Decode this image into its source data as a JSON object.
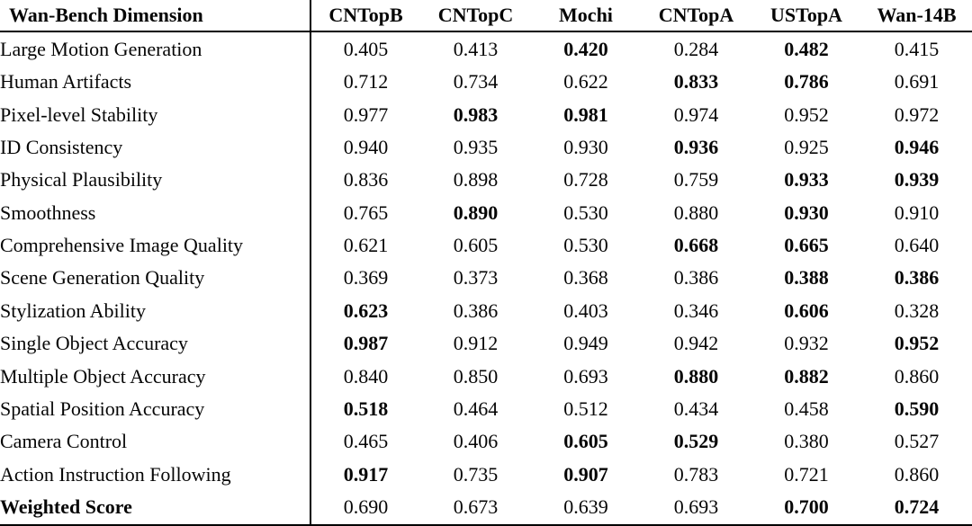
{
  "chart_data": {
    "type": "table",
    "columns": [
      "Wan-Bench Dimension",
      "CNTopB",
      "CNTopC",
      "Mochi",
      "CNTopA",
      "USTopA",
      "Wan-14B"
    ],
    "rows": [
      {
        "dimension": "Large Motion Generation",
        "dimension_bold": false,
        "values": [
          "0.405",
          "0.413",
          "0.420",
          "0.284",
          "0.482",
          "0.415"
        ],
        "bold": [
          2,
          4
        ]
      },
      {
        "dimension": "Human Artifacts",
        "dimension_bold": false,
        "values": [
          "0.712",
          "0.734",
          "0.622",
          "0.833",
          "0.786",
          "0.691"
        ],
        "bold": [
          3,
          4
        ]
      },
      {
        "dimension": "Pixel-level Stability",
        "dimension_bold": false,
        "values": [
          "0.977",
          "0.983",
          "0.981",
          "0.974",
          "0.952",
          "0.972"
        ],
        "bold": [
          1,
          2
        ]
      },
      {
        "dimension": "ID Consistency",
        "dimension_bold": false,
        "values": [
          "0.940",
          "0.935",
          "0.930",
          "0.936",
          "0.925",
          "0.946"
        ],
        "bold": [
          3,
          5
        ]
      },
      {
        "dimension": "Physical Plausibility",
        "dimension_bold": false,
        "values": [
          "0.836",
          "0.898",
          "0.728",
          "0.759",
          "0.933",
          "0.939"
        ],
        "bold": [
          4,
          5
        ]
      },
      {
        "dimension": "Smoothness",
        "dimension_bold": false,
        "values": [
          "0.765",
          "0.890",
          "0.530",
          "0.880",
          "0.930",
          "0.910"
        ],
        "bold": [
          1,
          4
        ]
      },
      {
        "dimension": "Comprehensive Image Quality",
        "dimension_bold": false,
        "values": [
          "0.621",
          "0.605",
          "0.530",
          "0.668",
          "0.665",
          "0.640"
        ],
        "bold": [
          3,
          4
        ]
      },
      {
        "dimension": "Scene Generation Quality",
        "dimension_bold": false,
        "values": [
          "0.369",
          "0.373",
          "0.368",
          "0.386",
          "0.388",
          "0.386"
        ],
        "bold": [
          4,
          5
        ]
      },
      {
        "dimension": "Stylization Ability",
        "dimension_bold": false,
        "values": [
          "0.623",
          "0.386",
          "0.403",
          "0.346",
          "0.606",
          "0.328"
        ],
        "bold": [
          0,
          4
        ]
      },
      {
        "dimension": "Single Object Accuracy",
        "dimension_bold": false,
        "values": [
          "0.987",
          "0.912",
          "0.949",
          "0.942",
          "0.932",
          "0.952"
        ],
        "bold": [
          0,
          5
        ]
      },
      {
        "dimension": "Multiple Object Accuracy",
        "dimension_bold": false,
        "values": [
          "0.840",
          "0.850",
          "0.693",
          "0.880",
          "0.882",
          "0.860"
        ],
        "bold": [
          3,
          4
        ]
      },
      {
        "dimension": "Spatial Position Accuracy",
        "dimension_bold": false,
        "values": [
          "0.518",
          "0.464",
          "0.512",
          "0.434",
          "0.458",
          "0.590"
        ],
        "bold": [
          0,
          5
        ]
      },
      {
        "dimension": "Camera Control",
        "dimension_bold": false,
        "values": [
          "0.465",
          "0.406",
          "0.605",
          "0.529",
          "0.380",
          "0.527"
        ],
        "bold": [
          2,
          3
        ]
      },
      {
        "dimension": "Action Instruction Following",
        "dimension_bold": false,
        "values": [
          "0.917",
          "0.735",
          "0.907",
          "0.783",
          "0.721",
          "0.860"
        ],
        "bold": [
          0,
          2
        ]
      },
      {
        "dimension": "Weighted Score",
        "dimension_bold": true,
        "values": [
          "0.690",
          "0.673",
          "0.639",
          "0.693",
          "0.700",
          "0.724"
        ],
        "bold": [
          4,
          5
        ]
      }
    ],
    "colors": {
      "text": "#060606",
      "background": "#ffffff",
      "rule": "#000000"
    }
  }
}
